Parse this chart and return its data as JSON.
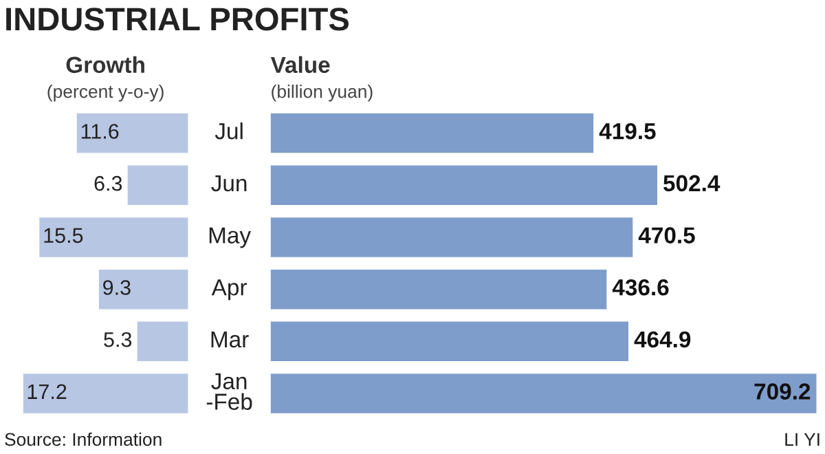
{
  "chart_data": [
    {
      "type": "bar",
      "orientation": "horizontal",
      "title": "Growth",
      "subtitle": "(percent y-o-y)",
      "categories": [
        "Jul",
        "Jun",
        "May",
        "Apr",
        "Mar",
        "Jan\n-Feb"
      ],
      "values": [
        11.6,
        6.3,
        15.5,
        9.3,
        5.3,
        17.2
      ],
      "color": "#b7c6e3",
      "xlim": [
        17.2,
        0
      ],
      "data_labels": true,
      "tick_labels": "y",
      "legend": false,
      "annotations": [
        "INDUSTRIAL PROFITS",
        "Source: Information",
        "LI YI"
      ]
    },
    {
      "type": "bar",
      "orientation": "horizontal",
      "title": "Value",
      "subtitle": "(billion yuan)",
      "categories": [
        null,
        null,
        null,
        null,
        null,
        null
      ],
      "values": [
        419.5,
        502.4,
        470.5,
        436.6,
        464.9,
        709.2
      ],
      "color": "#7f9dcb",
      "xlim": [
        0,
        715
      ],
      "data_labels": true,
      "tick_labels": false,
      "legend": false
    }
  ]
}
